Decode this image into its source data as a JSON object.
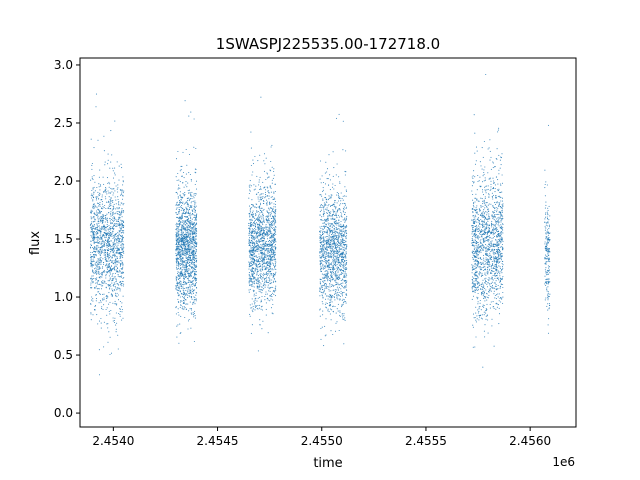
{
  "chart_data": {
    "type": "scatter",
    "title": "1SWASPJ225535.00-172718.0",
    "xlabel": "time",
    "ylabel": "flux",
    "x_offset_label": "1e6",
    "xlim": [
      2453840,
      2456220
    ],
    "ylim": [
      -0.12,
      3.06
    ],
    "xticks": [
      2454000,
      2454500,
      2455000,
      2455500,
      2456000
    ],
    "xtick_labels": [
      "2.4540",
      "2.4545",
      "2.4550",
      "2.4555",
      "2.4560"
    ],
    "yticks": [
      0.0,
      0.5,
      1.0,
      1.5,
      2.0,
      2.5,
      3.0
    ],
    "ytick_labels": [
      "0.0",
      "0.5",
      "1.0",
      "1.5",
      "2.0",
      "2.5",
      "3.0"
    ],
    "grid": false,
    "marker_color": "#1f77b4",
    "series": [
      {
        "name": "",
        "clusters": [
          {
            "x_range": [
              2453890,
              2454050
            ],
            "center_flux": 1.45,
            "spread": 0.28,
            "n_points": 1400
          },
          {
            "x_range": [
              2454300,
              2454400
            ],
            "center_flux": 1.42,
            "spread": 0.26,
            "n_points": 1400
          },
          {
            "x_range": [
              2454650,
              2454780
            ],
            "center_flux": 1.45,
            "spread": 0.26,
            "n_points": 1400
          },
          {
            "x_range": [
              2454990,
              2455120
            ],
            "center_flux": 1.4,
            "spread": 0.26,
            "n_points": 1300
          },
          {
            "x_range": [
              2455720,
              2455870
            ],
            "center_flux": 1.45,
            "spread": 0.3,
            "n_points": 1400
          },
          {
            "x_range": [
              2456070,
              2456095
            ],
            "center_flux": 1.35,
            "spread": 0.25,
            "n_points": 200
          }
        ]
      }
    ]
  }
}
